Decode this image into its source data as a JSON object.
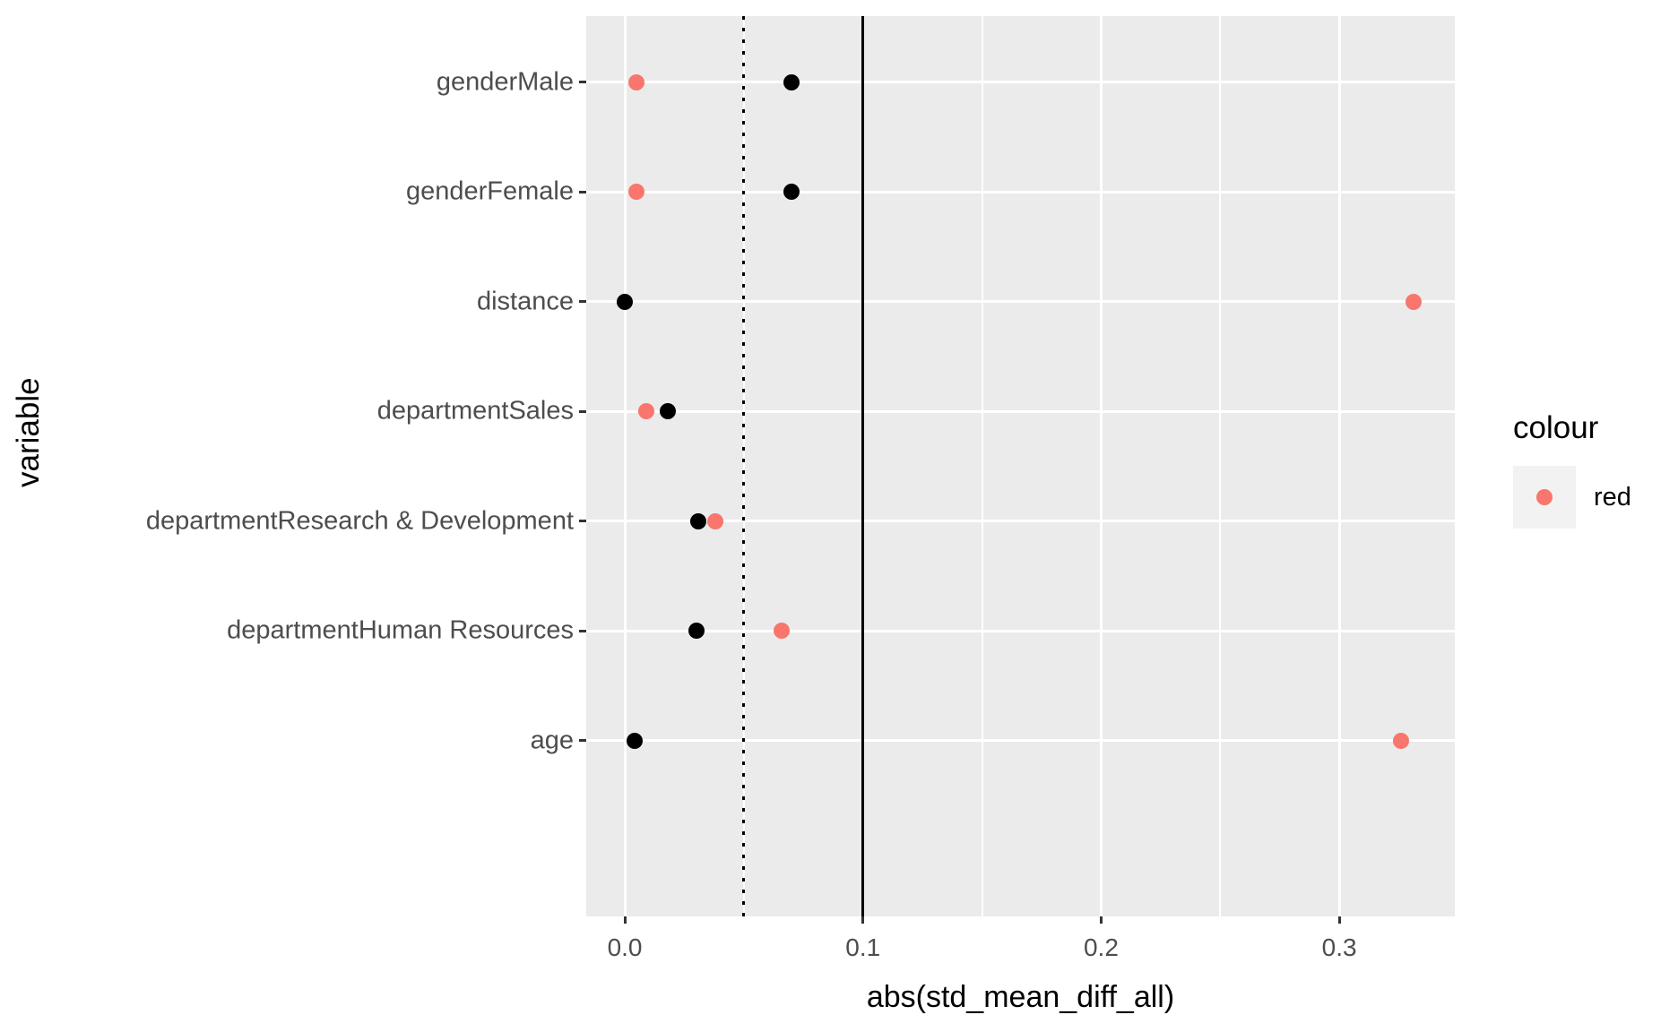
{
  "chart_data": {
    "type": "scatter",
    "title": "",
    "xlabel": "abs(std_mean_diff_all)",
    "ylabel": "variable",
    "categories": [
      "genderMale",
      "genderFemale",
      "distance",
      "departmentSales",
      "departmentResearch & Development",
      "departmentHuman Resources",
      "age"
    ],
    "series": [
      {
        "name": "red",
        "color": "#F8766D",
        "values": [
          0.005,
          0.005,
          0.331,
          0.009,
          0.038,
          0.066,
          0.326
        ]
      },
      {
        "name": "black",
        "color": "#000000",
        "values": [
          0.07,
          0.07,
          0.0,
          0.018,
          0.031,
          0.03,
          0.004
        ]
      }
    ],
    "x_ticks": [
      0.0,
      0.1,
      0.2,
      0.3
    ],
    "x_tick_labels": [
      "0.0",
      "0.1",
      "0.2",
      "0.3"
    ],
    "x_minor_gridlines": [
      0.05,
      0.15,
      0.25
    ],
    "xlim": [
      -0.0162,
      0.3485
    ],
    "reference_lines": [
      {
        "x": 0.05,
        "style": "dotted"
      },
      {
        "x": 0.1,
        "style": "solid"
      }
    ],
    "grid": {
      "horizontal": "per-category",
      "vertical_major_step": 0.1,
      "vertical_minor_step": 0.05
    },
    "legend": {
      "title": "colour",
      "position": "right",
      "entries": [
        {
          "label": "red",
          "color": "#F8766D"
        }
      ]
    },
    "style": {
      "panel_background": "#EBEBEB",
      "gridline_color": "#FFFFFF",
      "tick_color": "#333333",
      "tick_label_color": "#4D4D4D",
      "legend_key_background": "#F2F2F2"
    }
  }
}
